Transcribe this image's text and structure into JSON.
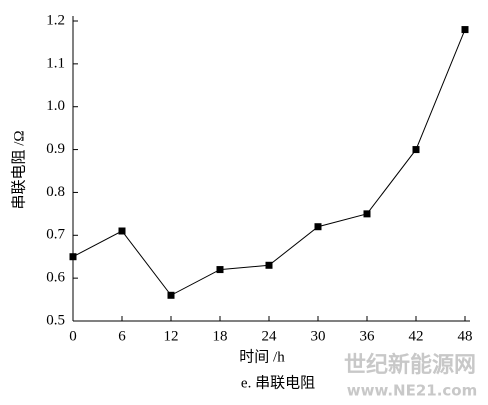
{
  "chart_data": {
    "type": "line",
    "x_label": "时间 /h",
    "y_label": "串联电阻 /Ω",
    "caption": "e. 串联电阻",
    "x": [
      0,
      6,
      12,
      18,
      24,
      30,
      36,
      42,
      48
    ],
    "series": [
      {
        "color": "#000000",
        "values": [
          0.65,
          0.71,
          0.56,
          0.62,
          0.63,
          0.72,
          0.75,
          0.9,
          1.18
        ]
      }
    ],
    "xlim": [
      0,
      48
    ],
    "xticks": [
      0,
      6,
      12,
      18,
      24,
      30,
      36,
      42,
      48
    ],
    "ylim": [
      0.5,
      1.2
    ],
    "yticks": [
      0.5,
      0.6,
      0.7,
      0.8,
      0.9,
      {
        "value": 1.0,
        "label": "1.0"
      },
      1.1,
      1.2
    ]
  },
  "watermark": {
    "name": "世纪新能源网",
    "url": "www.NE21.com"
  }
}
